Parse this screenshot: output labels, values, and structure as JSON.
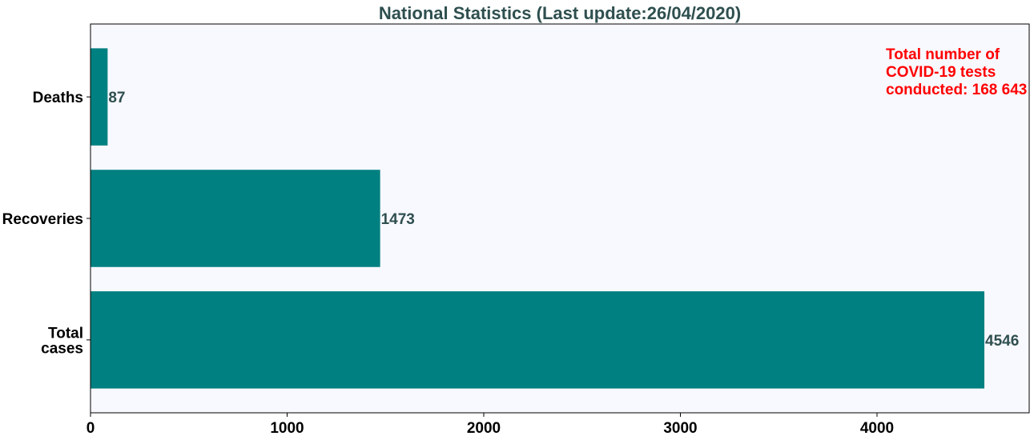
{
  "chart_data": {
    "type": "bar",
    "orientation": "horizontal",
    "title": "National Statistics (Last update:26/04/2020)",
    "categories": [
      [
        "Total",
        "cases"
      ],
      [
        "Recoveries"
      ],
      [
        "Deaths"
      ]
    ],
    "values": [
      4546,
      1473,
      87
    ],
    "data_labels": [
      "4546",
      "1473",
      "87"
    ],
    "xlim": [
      0,
      4774
    ],
    "xticks": [
      0,
      1000,
      2000,
      3000,
      4000
    ],
    "xtick_labels": [
      "0",
      "1000",
      "2000",
      "3000",
      "4000"
    ],
    "xlabel": "",
    "ylabel": "",
    "grid": false,
    "annotation": {
      "lines": [
        "Total number of",
        "COVID-19 tests",
        "conducted: 168 643"
      ],
      "placement": "top-right"
    },
    "colors": {
      "bar": "#008080",
      "plot_background": "#f8f8ff",
      "title": "#2f4f4f",
      "data_label": "#2f4f4f",
      "annotation": "#ff0000",
      "tick_label": "#000000"
    }
  }
}
